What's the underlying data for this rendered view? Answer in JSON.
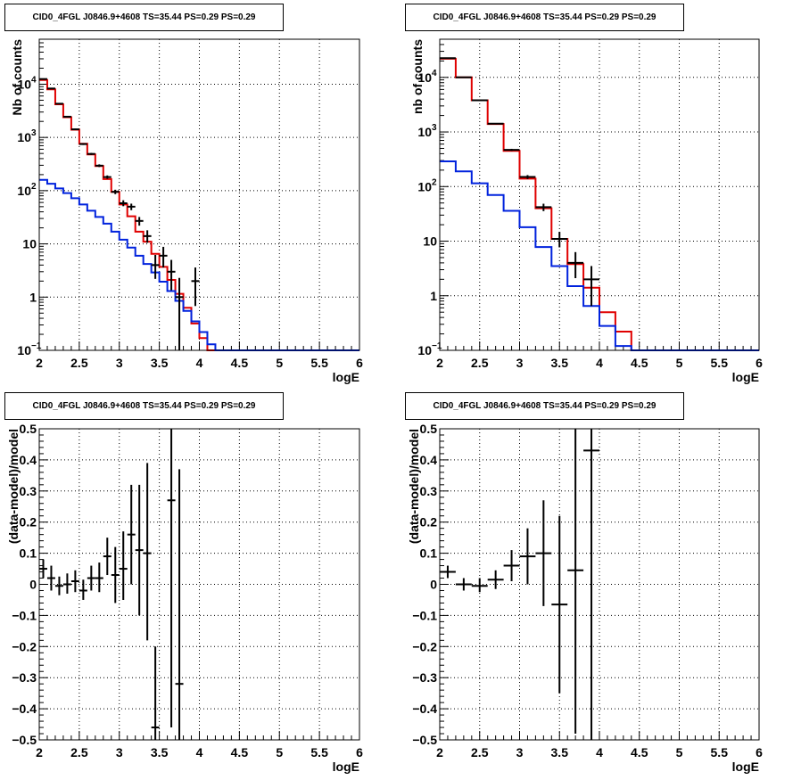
{
  "colors": {
    "data": "#000000",
    "total_model": "#e00000",
    "component": "#0022dd"
  },
  "chart_data": [
    {
      "type": "line",
      "scale": "log",
      "title": "CID0_4FGL J0846.9+4608 TS=35.44 PS=0.29 PS=0.29",
      "xlabel": "logE",
      "ylabel": "Nb of counts",
      "xlim": [
        2,
        6
      ],
      "ylim": [
        0.1,
        70000
      ],
      "xticks": [
        "2",
        "2.5",
        "3",
        "3.5",
        "4",
        "4.5",
        "5",
        "5.5",
        "6"
      ],
      "yticks": [
        {
          "value": 0.1,
          "label": "10",
          "sup": "−1"
        },
        {
          "value": 1,
          "label": "1",
          "sup": ""
        },
        {
          "value": 10,
          "label": "10",
          "sup": ""
        },
        {
          "value": 100,
          "label": "10",
          "sup": "2"
        },
        {
          "value": 1000,
          "label": "10",
          "sup": "3"
        },
        {
          "value": 10000,
          "label": "10",
          "sup": "4"
        }
      ],
      "grid": true,
      "bin_edges": [
        2.0,
        2.1,
        2.2,
        2.3,
        2.4,
        2.5,
        2.6,
        2.7,
        2.8,
        2.9,
        3.0,
        3.1,
        3.2,
        3.3,
        3.4,
        3.5,
        3.6,
        3.7,
        3.8,
        3.9,
        4.0,
        4.1,
        4.2,
        4.3,
        4.4,
        4.5,
        4.6,
        4.7,
        4.8,
        4.9,
        5.0,
        5.1,
        5.2,
        5.3,
        5.4,
        5.5,
        5.6,
        5.7,
        5.8,
        5.9,
        6.0
      ],
      "series": [
        {
          "role": "total_model",
          "values": [
            12000,
            8000,
            4200,
            2400,
            1400,
            760,
            480,
            290,
            165,
            95,
            55,
            33,
            17,
            11,
            6.5,
            3.7,
            2.1,
            1.15,
            0.63,
            0.32,
            0.17,
            0.1,
            0.1,
            0.1,
            0.1,
            0.1,
            0.1,
            0.1,
            0.1,
            0.1,
            0.1,
            0.1,
            0.1,
            0.1,
            0.1,
            0.1,
            0.1,
            0.1,
            0.1,
            0.1
          ]
        },
        {
          "role": "component",
          "values": [
            160,
            135,
            110,
            90,
            72,
            55,
            42,
            32,
            24,
            17,
            12,
            8.5,
            6,
            4.2,
            2.9,
            1.95,
            1.3,
            0.85,
            0.55,
            0.35,
            0.22,
            0.13,
            0.1,
            0.1,
            0.1,
            0.1,
            0.1,
            0.1,
            0.1,
            0.1,
            0.1,
            0.1,
            0.1,
            0.1,
            0.1,
            0.1,
            0.1,
            0.1,
            0.1,
            0.1
          ]
        }
      ],
      "points": [
        {
          "x": 2.05,
          "y": 12500,
          "lo": 12300,
          "hi": 12700
        },
        {
          "x": 2.15,
          "y": 8300,
          "lo": 8100,
          "hi": 8500
        },
        {
          "x": 2.25,
          "y": 4300,
          "lo": 4200,
          "hi": 4400
        },
        {
          "x": 2.35,
          "y": 2450,
          "lo": 2400,
          "hi": 2500
        },
        {
          "x": 2.45,
          "y": 1420,
          "lo": 1380,
          "hi": 1460
        },
        {
          "x": 2.55,
          "y": 750,
          "lo": 722,
          "hi": 778
        },
        {
          "x": 2.65,
          "y": 490,
          "lo": 468,
          "hi": 512
        },
        {
          "x": 2.75,
          "y": 295,
          "lo": 278,
          "hi": 312
        },
        {
          "x": 2.85,
          "y": 180,
          "lo": 167,
          "hi": 193
        },
        {
          "x": 2.95,
          "y": 95,
          "lo": 86,
          "hi": 104
        },
        {
          "x": 3.05,
          "y": 58,
          "lo": 51,
          "hi": 66
        },
        {
          "x": 3.15,
          "y": 50,
          "lo": 43,
          "hi": 57
        },
        {
          "x": 3.25,
          "y": 27,
          "lo": 22,
          "hi": 32
        },
        {
          "x": 3.35,
          "y": 14,
          "lo": 10.5,
          "hi": 18
        },
        {
          "x": 3.45,
          "y": 4,
          "lo": 2.2,
          "hi": 6.2
        },
        {
          "x": 3.55,
          "y": 6,
          "lo": 3.6,
          "hi": 8.8
        },
        {
          "x": 3.65,
          "y": 3,
          "lo": 1.35,
          "hi": 5
        },
        {
          "x": 3.75,
          "y": 1,
          "lo": 0.1,
          "hi": 2.3
        },
        {
          "x": 3.95,
          "y": 2,
          "lo": 0.68,
          "hi": 3.6
        }
      ]
    },
    {
      "type": "line",
      "scale": "log",
      "title": "CID0_4FGL J0846.9+4608 TS=35.44 PS=0.29 PS=0.29",
      "xlabel": "logE",
      "ylabel": "nb of counts",
      "xlim": [
        2,
        6
      ],
      "ylim": [
        0.1,
        50000
      ],
      "xticks": [
        "2",
        "2.5",
        "3",
        "3.5",
        "4",
        "4.5",
        "5",
        "5.5",
        "6"
      ],
      "yticks": [
        {
          "value": 0.1,
          "label": "10",
          "sup": "−1"
        },
        {
          "value": 1,
          "label": "1",
          "sup": ""
        },
        {
          "value": 10,
          "label": "10",
          "sup": ""
        },
        {
          "value": 100,
          "label": "10",
          "sup": "2"
        },
        {
          "value": 1000,
          "label": "10",
          "sup": "3"
        },
        {
          "value": 10000,
          "label": "10",
          "sup": "4"
        }
      ],
      "grid": true,
      "bin_edges": [
        2.0,
        2.2,
        2.4,
        2.6,
        2.8,
        3.0,
        3.2,
        3.4,
        3.6,
        3.8,
        4.0,
        4.2,
        4.4,
        4.6,
        4.8,
        5.0,
        5.2,
        5.4,
        5.6,
        5.8,
        6.0
      ],
      "series": [
        {
          "role": "total_model",
          "values": [
            22000,
            10000,
            3800,
            1400,
            450,
            140,
            40,
            11,
            3.8,
            1.4,
            0.5,
            0.22,
            0.1,
            0.1,
            0.1,
            0.1,
            0.1,
            0.1,
            0.1,
            0.1
          ]
        },
        {
          "role": "component",
          "values": [
            290,
            190,
            115,
            70,
            36,
            18,
            7.8,
            3.5,
            1.5,
            0.65,
            0.28,
            0.12,
            0.1,
            0.1,
            0.1,
            0.1,
            0.1,
            0.1,
            0.1,
            0.1
          ]
        }
      ],
      "points": [
        {
          "x": 2.1,
          "y": 22500,
          "lo": 22300,
          "hi": 22700
        },
        {
          "x": 2.3,
          "y": 10000,
          "lo": 9850,
          "hi": 10150
        },
        {
          "x": 2.5,
          "y": 3800,
          "lo": 3740,
          "hi": 3860
        },
        {
          "x": 2.7,
          "y": 1420,
          "lo": 1383,
          "hi": 1457
        },
        {
          "x": 2.9,
          "y": 470,
          "lo": 449,
          "hi": 491
        },
        {
          "x": 3.1,
          "y": 150,
          "lo": 138,
          "hi": 162
        },
        {
          "x": 3.3,
          "y": 42,
          "lo": 35.5,
          "hi": 48.5
        },
        {
          "x": 3.5,
          "y": 11,
          "lo": 7.7,
          "hi": 14.8
        },
        {
          "x": 3.7,
          "y": 4,
          "lo": 2.1,
          "hi": 6.3
        },
        {
          "x": 3.9,
          "y": 2,
          "lo": 0.65,
          "hi": 3.5
        }
      ]
    },
    {
      "type": "scatter",
      "scale": "linear",
      "title": "CID0_4FGL J0846.9+4608 TS=35.44 PS=0.29 PS=0.29",
      "xlabel": "logE",
      "ylabel": "(data-model)/model",
      "xlim": [
        2,
        6
      ],
      "ylim": [
        -0.5,
        0.5
      ],
      "xticks": [
        "2",
        "2.5",
        "3",
        "3.5",
        "4",
        "4.5",
        "5",
        "5.5",
        "6"
      ],
      "yticks_linear": [
        "−0.5",
        "−0.4",
        "−0.3",
        "−0.2",
        "−0.1",
        "0",
        "0.1",
        "0.2",
        "0.3",
        "0.4",
        "0.5"
      ],
      "grid": true,
      "bin_width": 0.1,
      "points": [
        {
          "x": 2.05,
          "y": 0.05,
          "lo": 0.02,
          "hi": 0.08
        },
        {
          "x": 2.15,
          "y": 0.02,
          "lo": -0.02,
          "hi": 0.06
        },
        {
          "x": 2.25,
          "y": -0.005,
          "lo": -0.035,
          "hi": 0.025
        },
        {
          "x": 2.35,
          "y": 0.0,
          "lo": -0.03,
          "hi": 0.035
        },
        {
          "x": 2.45,
          "y": 0.01,
          "lo": -0.025,
          "hi": 0.045
        },
        {
          "x": 2.55,
          "y": -0.02,
          "lo": -0.05,
          "hi": 0.015
        },
        {
          "x": 2.65,
          "y": 0.02,
          "lo": -0.02,
          "hi": 0.06
        },
        {
          "x": 2.75,
          "y": 0.02,
          "lo": -0.025,
          "hi": 0.07
        },
        {
          "x": 2.85,
          "y": 0.09,
          "lo": 0.03,
          "hi": 0.15
        },
        {
          "x": 2.95,
          "y": 0.03,
          "lo": -0.06,
          "hi": 0.12
        },
        {
          "x": 3.05,
          "y": 0.05,
          "lo": -0.05,
          "hi": 0.17
        },
        {
          "x": 3.15,
          "y": 0.16,
          "lo": 0.0,
          "hi": 0.32
        },
        {
          "x": 3.25,
          "y": 0.11,
          "lo": -0.1,
          "hi": 0.32
        },
        {
          "x": 3.35,
          "y": 0.1,
          "lo": -0.18,
          "hi": 0.39
        },
        {
          "x": 3.45,
          "y": -0.46,
          "lo": -0.5,
          "hi": -0.2
        },
        {
          "x": 3.65,
          "y": 0.27,
          "lo": -0.46,
          "hi": 0.5
        },
        {
          "x": 3.75,
          "y": -0.32,
          "lo": -0.5,
          "hi": 0.37
        }
      ]
    },
    {
      "type": "scatter",
      "scale": "linear",
      "title": "CID0_4FGL J0846.9+4608 TS=35.44 PS=0.29 PS=0.29",
      "xlabel": "logE",
      "ylabel": "(data-model)/model",
      "xlim": [
        2,
        6
      ],
      "ylim": [
        -0.5,
        0.5
      ],
      "xticks": [
        "2",
        "2.5",
        "3",
        "3.5",
        "4",
        "4.5",
        "5",
        "5.5",
        "6"
      ],
      "yticks_linear": [
        "−0.5",
        "−0.4",
        "−0.3",
        "−0.2",
        "−0.1",
        "0",
        "0.1",
        "0.2",
        "0.3",
        "0.4",
        "0.5"
      ],
      "grid": true,
      "bin_width": 0.2,
      "points": [
        {
          "x": 2.1,
          "y": 0.04,
          "lo": 0.02,
          "hi": 0.06
        },
        {
          "x": 2.3,
          "y": 0.0,
          "lo": -0.02,
          "hi": 0.02
        },
        {
          "x": 2.5,
          "y": -0.005,
          "lo": -0.025,
          "hi": 0.02
        },
        {
          "x": 2.7,
          "y": 0.015,
          "lo": -0.015,
          "hi": 0.045
        },
        {
          "x": 2.9,
          "y": 0.06,
          "lo": 0.01,
          "hi": 0.11
        },
        {
          "x": 3.1,
          "y": 0.09,
          "lo": 0.0,
          "hi": 0.18
        },
        {
          "x": 3.3,
          "y": 0.1,
          "lo": -0.07,
          "hi": 0.27
        },
        {
          "x": 3.5,
          "y": -0.065,
          "lo": -0.35,
          "hi": 0.22
        },
        {
          "x": 3.7,
          "y": 0.045,
          "lo": -0.48,
          "hi": 0.5
        },
        {
          "x": 3.9,
          "y": 0.43,
          "lo": -0.5,
          "hi": 0.5
        }
      ]
    }
  ]
}
